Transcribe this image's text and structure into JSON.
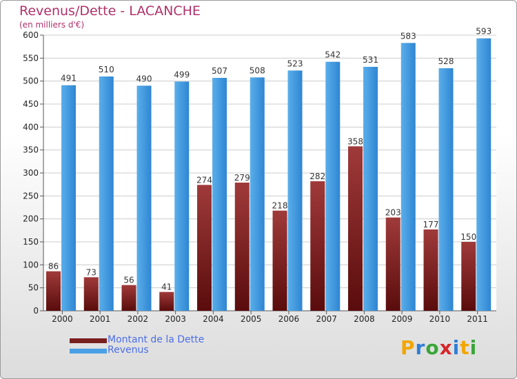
{
  "chart_data": {
    "type": "bar",
    "title": "Revenus/Dette - LACANCHE",
    "subtitle": "(en milliers d'€)",
    "categories": [
      "2000",
      "2001",
      "2002",
      "2003",
      "2004",
      "2005",
      "2006",
      "2007",
      "2008",
      "2009",
      "2010",
      "2011"
    ],
    "series": [
      {
        "name": "Montant de la Dette",
        "values": [
          86,
          73,
          56,
          41,
          274,
          279,
          218,
          282,
          358,
          203,
          177,
          150
        ],
        "color": "#7a1f1f"
      },
      {
        "name": "Revenus",
        "values": [
          491,
          510,
          490,
          499,
          507,
          508,
          523,
          542,
          531,
          583,
          528,
          593
        ],
        "color": "#4aa0e6"
      }
    ],
    "ylim": [
      0,
      600
    ],
    "yticks": [
      0,
      50,
      100,
      150,
      200,
      250,
      300,
      350,
      400,
      450,
      500,
      550,
      600
    ],
    "grid": true,
    "legend": "bottom-left"
  },
  "logo": {
    "letters": [
      "P",
      "r",
      "o",
      "x",
      "i",
      "t",
      "i"
    ],
    "colors": [
      "#f2a600",
      "#2f7fd6",
      "#3aa53a",
      "#d6262a",
      "#2f7fd6",
      "#f2a600",
      "#3aa53a"
    ]
  }
}
